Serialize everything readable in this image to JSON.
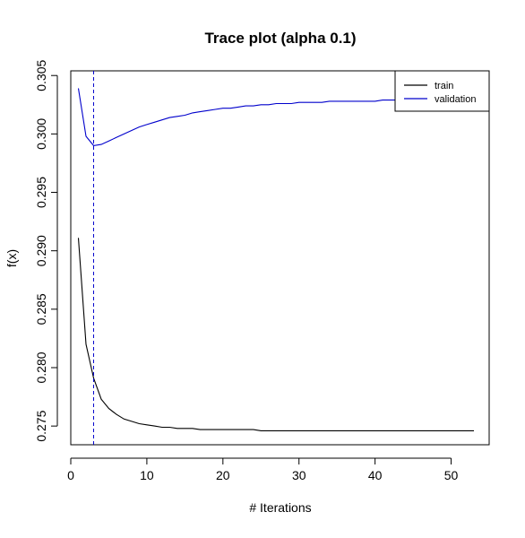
{
  "chart_data": {
    "type": "line",
    "title": "Trace plot (alpha 0.1)",
    "xlabel": "# Iterations",
    "ylabel": "f(x)",
    "xlim": [
      0,
      55
    ],
    "ylim": [
      0.2734,
      0.3054
    ],
    "x_ticks": [
      0,
      10,
      20,
      30,
      40,
      50
    ],
    "y_ticks": [
      0.275,
      0.28,
      0.285,
      0.29,
      0.295,
      0.3,
      0.305
    ],
    "grid": false,
    "legend_position": "top-right",
    "series": [
      {
        "name": "train",
        "color": "#000000",
        "x": [
          1,
          2,
          3,
          4,
          5,
          6,
          7,
          8,
          9,
          10,
          11,
          12,
          13,
          14,
          15,
          16,
          17,
          18,
          19,
          20,
          21,
          22,
          23,
          24,
          25,
          26,
          27,
          28,
          29,
          30,
          31,
          32,
          33,
          34,
          35,
          36,
          37,
          38,
          39,
          40,
          41,
          42,
          43,
          44,
          45,
          46,
          47,
          48,
          49,
          50,
          51,
          52,
          53
        ],
        "values": [
          0.2911,
          0.282,
          0.2791,
          0.2773,
          0.2765,
          0.276,
          0.2756,
          0.2754,
          0.2752,
          0.2751,
          0.275,
          0.2749,
          0.2749,
          0.2748,
          0.2748,
          0.2748,
          0.2747,
          0.2747,
          0.2747,
          0.2747,
          0.2747,
          0.2747,
          0.2747,
          0.2747,
          0.2746,
          0.2746,
          0.2746,
          0.2746,
          0.2746,
          0.2746,
          0.2746,
          0.2746,
          0.2746,
          0.2746,
          0.2746,
          0.2746,
          0.2746,
          0.2746,
          0.2746,
          0.2746,
          0.2746,
          0.2746,
          0.2746,
          0.2746,
          0.2746,
          0.2746,
          0.2746,
          0.2746,
          0.2746,
          0.2746,
          0.2746,
          0.2746,
          0.2746
        ]
      },
      {
        "name": "validation",
        "color": "#0000cc",
        "x": [
          1,
          2,
          3,
          4,
          5,
          6,
          7,
          8,
          9,
          10,
          11,
          12,
          13,
          14,
          15,
          16,
          17,
          18,
          19,
          20,
          21,
          22,
          23,
          24,
          25,
          26,
          27,
          28,
          29,
          30,
          31,
          32,
          33,
          34,
          35,
          36,
          37,
          38,
          39,
          40,
          41,
          42,
          43,
          44,
          45,
          46,
          47,
          48,
          49,
          50,
          51,
          52,
          53
        ],
        "values": [
          0.3039,
          0.2998,
          0.299,
          0.2991,
          0.2994,
          0.2997,
          0.3,
          0.3003,
          0.3006,
          0.3008,
          0.301,
          0.3012,
          0.3014,
          0.3015,
          0.3016,
          0.3018,
          0.3019,
          0.302,
          0.3021,
          0.3022,
          0.3022,
          0.3023,
          0.3024,
          0.3024,
          0.3025,
          0.3025,
          0.3026,
          0.3026,
          0.3026,
          0.3027,
          0.3027,
          0.3027,
          0.3027,
          0.3028,
          0.3028,
          0.3028,
          0.3028,
          0.3028,
          0.3028,
          0.3028,
          0.3029,
          0.3029,
          0.3029,
          0.3029,
          0.3029,
          0.3029,
          0.3029,
          0.3029,
          0.3029,
          0.3029,
          0.3029,
          0.3029,
          0.3029
        ]
      }
    ],
    "vline": {
      "x": 3,
      "color": "#0000cc",
      "style": "dashed"
    }
  }
}
